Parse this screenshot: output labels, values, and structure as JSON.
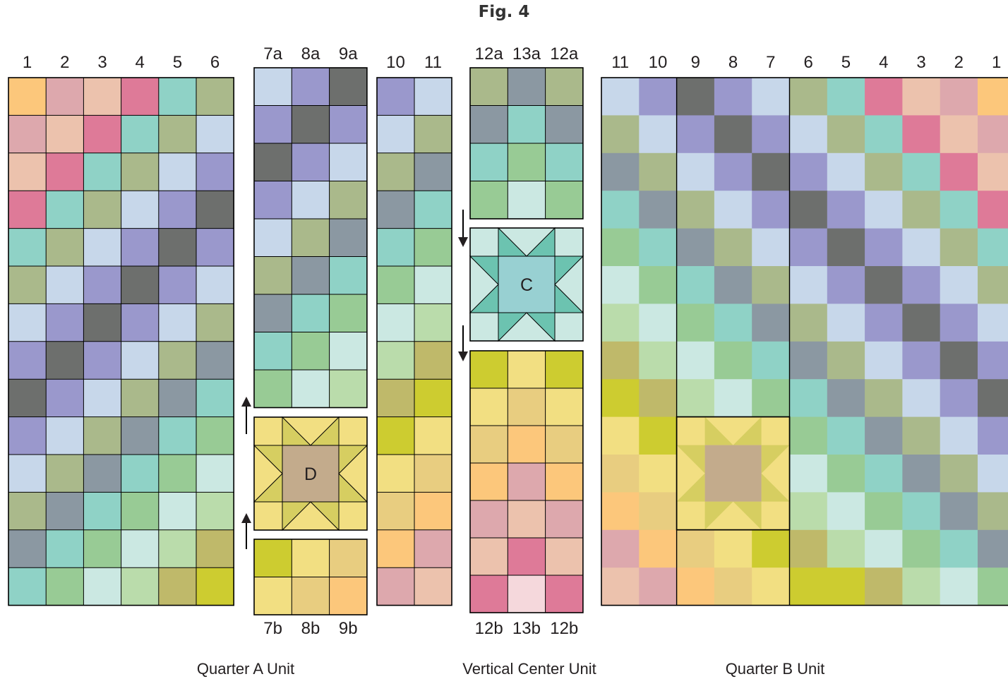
{
  "figure_title": "Fig. 4",
  "unit_captions": {
    "quarter_a": "Quarter A Unit",
    "vertical_center": "Vertical Center Unit",
    "quarter_b": "Quarter B Unit"
  },
  "block_labels": {
    "center": "C",
    "lower": "D"
  },
  "palette": {
    "a": "#fcc77b",
    "b": "#dda8ad",
    "c": "#ecc2ad",
    "d": "#de7a98",
    "e": "#8fd2c6",
    "f": "#aab98b",
    "g": "#c7d7ea",
    "h": "#9a98cc",
    "i": "#6d6f6d",
    "j": "#8b98a2",
    "k": "#98cb95",
    "l": "#cbe8e2",
    "m": "#badcab",
    "n": "#bfb96a",
    "o": "#cdcc30",
    "p": "#f2df82",
    "q": "#e8cd80",
    "r": "#f5d8dc",
    "C_bg": "#cbe8e2",
    "C_star": "#6cc3b0",
    "C_center": "#98d0d2",
    "D_bg": "#f2df82",
    "D_star": "#d6ce61",
    "D_center": "#c3ab8c",
    "line": "#000000"
  },
  "quarter_a": {
    "column_labels": [
      "1",
      "2",
      "3",
      "4",
      "5",
      "6"
    ],
    "rows": [
      "abcdef",
      "bcdefg",
      "cdefgh",
      "defghi",
      "efghih",
      "fghihg",
      "ghihgf",
      "hihgfj",
      "ihgfje",
      "hgfjek",
      "gfjekl",
      "fjeklm",
      "jeklmn",
      "eklmno"
    ]
  },
  "strip_7_9_top": {
    "column_labels": [
      "7a",
      "8a",
      "9a"
    ],
    "rows": [
      "ghi",
      "hih",
      "ihg",
      "hgf",
      "gfj",
      "fje",
      "jek",
      "ekl",
      "klm"
    ]
  },
  "strip_7_9_bottom": {
    "column_labels": [
      "7b",
      "8b",
      "9b"
    ],
    "rows": [
      "opq",
      "pqa"
    ]
  },
  "strip_10_11": {
    "column_labels": [
      "10",
      "11"
    ],
    "rows": [
      "hg",
      "gf",
      "fj",
      "je",
      "ek",
      "kl",
      "lm",
      "mn",
      "no",
      "op",
      "pq",
      "qa",
      "ab",
      "bc"
    ]
  },
  "strip_12_13_top": {
    "column_labels": [
      "12a",
      "13a",
      "12a"
    ],
    "rows": [
      "fjf",
      "jej",
      "eke",
      "klk"
    ]
  },
  "strip_12_13_bottom": {
    "column_labels": [
      "12b",
      "13b",
      "12b"
    ],
    "rows": [
      "opo",
      "pqp",
      "qaq",
      "aba",
      "bcb",
      "cdc",
      "drd"
    ]
  },
  "quarter_b": {
    "column_labels": [
      "11",
      "10",
      "9",
      "8",
      "7",
      "6",
      "5",
      "4",
      "3",
      "2",
      "1"
    ],
    "rows": [
      "ghihgfedcba",
      "fghihgfedcb",
      "jfghihgfedc",
      "ejfghihgfed",
      "kejfghihgfe",
      "lkejfghihgf",
      "mlkejfghihg",
      "nmlkejfghih",
      "onmlkejfghi",
      "po...kejfgh",
      "qp...lkejfg",
      "aq...mlkejf",
      "baqponmlkej",
      "cbaqpoonmlke"
    ]
  }
}
